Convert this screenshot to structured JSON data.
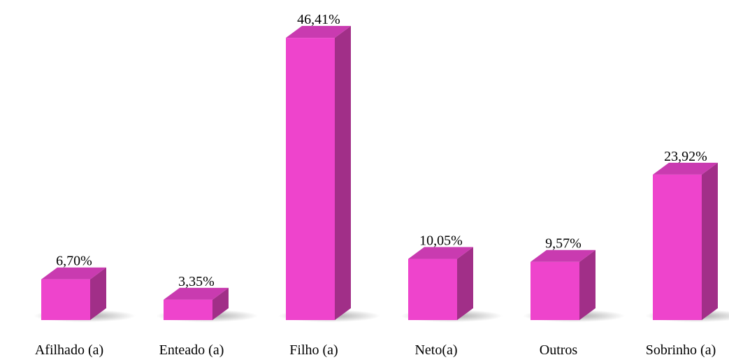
{
  "chart_data": {
    "type": "bar",
    "categories": [
      "Afilhado (a)",
      "Enteado (a)",
      "Filho (a)",
      "Neto(a)",
      "Outros",
      "Sobrinho (a)"
    ],
    "values": [
      6.7,
      3.35,
      46.41,
      10.05,
      9.57,
      23.92
    ],
    "value_labels": [
      "6,70%",
      "3,35%",
      "46,41%",
      "10,05%",
      "9,57%",
      "23,92%"
    ],
    "unit": "%",
    "ylim": [
      0,
      47
    ],
    "grid": false,
    "legend": "none",
    "style": "3d-bars",
    "colors": {
      "bar_front": "#ee44cc",
      "bar_side": "#a12f88",
      "bar_top": "#c93bb0"
    }
  }
}
